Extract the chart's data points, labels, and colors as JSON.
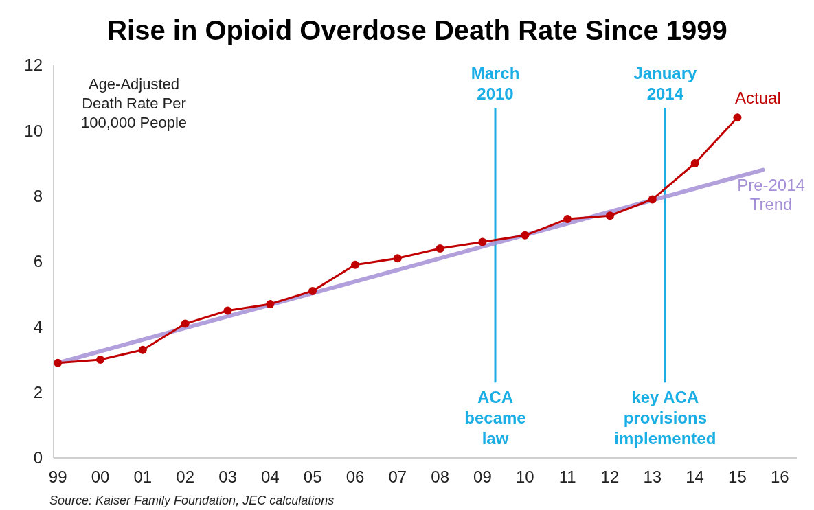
{
  "chart_data": {
    "type": "line",
    "title": "Rise in Opioid Overdose Death Rate Since 1999",
    "ylabel": "Age-Adjusted Death Rate Per 100,000 People",
    "xlim": [
      1998.9,
      2016.4
    ],
    "xticks": [
      {
        "value": 1999,
        "label": "99"
      },
      {
        "value": 2000,
        "label": "00"
      },
      {
        "value": 2001,
        "label": "01"
      },
      {
        "value": 2002,
        "label": "02"
      },
      {
        "value": 2003,
        "label": "03"
      },
      {
        "value": 2004,
        "label": "04"
      },
      {
        "value": 2005,
        "label": "05"
      },
      {
        "value": 2006,
        "label": "06"
      },
      {
        "value": 2007,
        "label": "07"
      },
      {
        "value": 2008,
        "label": "08"
      },
      {
        "value": 2009,
        "label": "09"
      },
      {
        "value": 2010,
        "label": "10"
      },
      {
        "value": 2011,
        "label": "11"
      },
      {
        "value": 2012,
        "label": "12"
      },
      {
        "value": 2013,
        "label": "13"
      },
      {
        "value": 2014,
        "label": "14"
      },
      {
        "value": 2015,
        "label": "15"
      },
      {
        "value": 2016,
        "label": "16"
      }
    ],
    "ylim": [
      0,
      12
    ],
    "yticks": [
      0,
      2,
      4,
      6,
      8,
      10,
      12
    ],
    "grid": false,
    "series": [
      {
        "name": "Pre-2014 Trend",
        "color": "#a58fd6",
        "x": [
          1999,
          2015.6
        ],
        "values": [
          2.9,
          8.8
        ],
        "marker": "none"
      },
      {
        "name": "Actual",
        "color": "#c00000",
        "x": [
          1999,
          2000,
          2001,
          2002,
          2003,
          2004,
          2005,
          2006,
          2007,
          2008,
          2009,
          2010,
          2011,
          2012,
          2013,
          2014,
          2015
        ],
        "values": [
          2.9,
          3.0,
          3.3,
          4.1,
          4.5,
          4.7,
          5.1,
          5.9,
          6.1,
          6.4,
          6.6,
          6.8,
          7.3,
          7.4,
          7.9,
          9.0,
          10.4
        ],
        "marker": "circle"
      }
    ],
    "ref_lines": [
      {
        "axis": "x",
        "value": 2009.3,
        "label": "March 2010",
        "color": "#1aaee5"
      },
      {
        "axis": "x",
        "value": 2013.3,
        "label": "January 2014",
        "color": "#1aaee5"
      }
    ],
    "annotations": [
      "ACA became law",
      "key ACA provisions implemented",
      "Source: Kaiser Family Foundation, JEC calculations"
    ]
  }
}
